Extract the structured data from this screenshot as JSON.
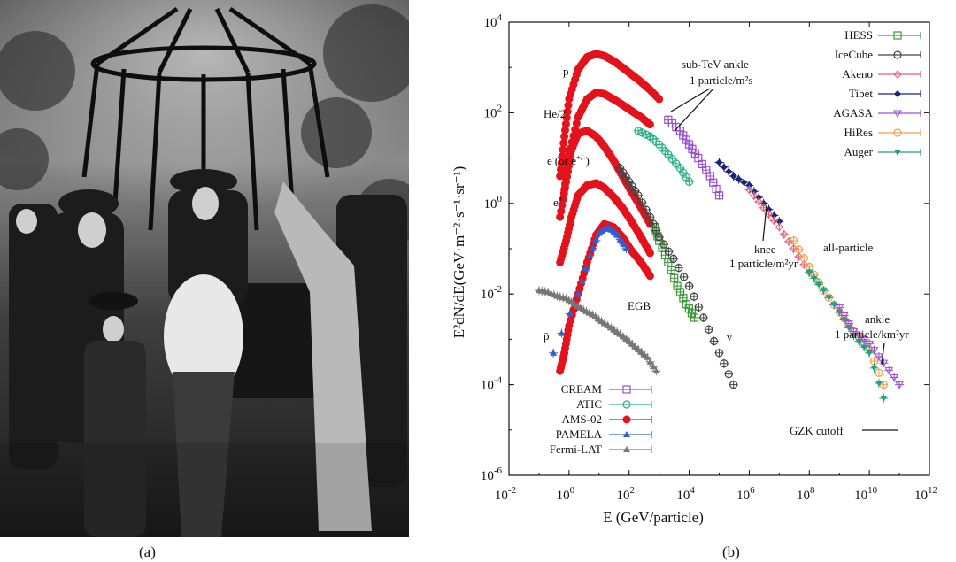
{
  "captions": {
    "a": "(a)",
    "b": "(b)"
  },
  "colors": {
    "p_he_e": "#e3121b",
    "cream": "#9b4fd3",
    "atic": "#2fae8a",
    "pamela": "#2f5fd6",
    "fermi": "#777777",
    "hess": "#3a9a3a",
    "icecube": "#444444",
    "akeno": "#e0607a",
    "tibet": "#1a237e",
    "agasa": "#9b4fd3",
    "hires": "#f0a050",
    "auger": "#20a080",
    "neutrino": "#333333"
  },
  "chart_data": {
    "type": "scatter",
    "xlabel": "E (GeV/particle)",
    "ylabel": "E²dN/dE(GeV·m⁻²·s⁻¹·sr⁻¹)",
    "x_scale": "log",
    "y_scale": "log",
    "xlim": [
      0.01,
      1000000000000.0
    ],
    "ylim": [
      1e-06,
      10000.0
    ],
    "x_ticks": [
      {
        "value": 0.01,
        "base": "10",
        "exp": "-2"
      },
      {
        "value": 1,
        "base": "10",
        "exp": "0"
      },
      {
        "value": 100,
        "base": "10",
        "exp": "2"
      },
      {
        "value": 10000,
        "base": "10",
        "exp": "4"
      },
      {
        "value": 1000000.0,
        "base": "10",
        "exp": "6"
      },
      {
        "value": 100000000.0,
        "base": "10",
        "exp": "8"
      },
      {
        "value": 10000000000.0,
        "base": "10",
        "exp": "10"
      },
      {
        "value": 1000000000000.0,
        "base": "10",
        "exp": "12"
      }
    ],
    "y_ticks": [
      {
        "value": 1e-06,
        "base": "10",
        "exp": "-6"
      },
      {
        "value": 0.0001,
        "base": "10",
        "exp": "-4"
      },
      {
        "value": 0.01,
        "base": "10",
        "exp": "-2"
      },
      {
        "value": 1,
        "base": "10",
        "exp": "0"
      },
      {
        "value": 100,
        "base": "10",
        "exp": "2"
      },
      {
        "value": 10000,
        "base": "10",
        "exp": "4"
      }
    ],
    "legend_left": [
      "CREAM",
      "ATIC",
      "AMS-02",
      "PAMELA",
      "Fermi-LAT"
    ],
    "legend_right": [
      "HESS",
      "IceCube",
      "Akeno",
      "Tibet",
      "AGASA",
      "HiRes",
      "Auger"
    ],
    "legend_left_position": "bottom-left",
    "legend_right_position": "top-right",
    "annotations": {
      "p": "p",
      "he": "He/2",
      "electron_pre": "e",
      "electron_sup": "-",
      "electron_mid": "(or e",
      "electron_sup2": "+/-",
      "electron_post": ")",
      "positron": "e",
      "positron_sup": "+",
      "antiproton": "p̄",
      "egb": "EGB",
      "nu": "ν",
      "subtev": "sub-TeV ankle",
      "subtev_rate": "1 particle/m²s",
      "knee": "knee",
      "knee_rate": "1 particle/m²yr",
      "all_particle": "all-particle",
      "ankle": "ankle",
      "ankle_rate": "1 particle/km²yr",
      "gzk": "GZK cutoff"
    },
    "series": [
      {
        "name": "p",
        "style": "ams",
        "x": [
          0.5,
          0.7,
          1,
          2,
          4,
          8,
          15,
          30,
          60,
          120,
          250,
          500,
          1000
        ],
        "y": [
          4,
          30,
          200,
          900,
          1700,
          2000,
          1800,
          1400,
          1000,
          700,
          480,
          320,
          200
        ]
      },
      {
        "name": "He/2",
        "style": "ams",
        "x": [
          0.7,
          1,
          2,
          4,
          8,
          15,
          30,
          60,
          120,
          250,
          500
        ],
        "y": [
          2,
          12,
          80,
          200,
          280,
          260,
          200,
          150,
          110,
          80,
          55
        ]
      },
      {
        "name": "e-",
        "style": "ams",
        "x": [
          0.5,
          0.8,
          1.2,
          2,
          4,
          8,
          15,
          30,
          60,
          120,
          250,
          500
        ],
        "y": [
          0.5,
          3,
          15,
          35,
          40,
          30,
          18,
          9,
          4,
          1.8,
          0.8,
          0.35
        ]
      },
      {
        "name": "e+",
        "style": "ams",
        "x": [
          0.5,
          0.8,
          1.2,
          2,
          4,
          8,
          15,
          30,
          60,
          120,
          250,
          500
        ],
        "y": [
          0.05,
          0.15,
          0.5,
          1.5,
          2.5,
          2.8,
          2.2,
          1.4,
          0.8,
          0.4,
          0.18,
          0.08
        ]
      },
      {
        "name": "pbar",
        "style": "ams",
        "x": [
          0.5,
          0.7,
          1,
          2,
          4,
          8,
          15,
          30,
          60,
          120,
          250,
          500
        ],
        "y": [
          0.0002,
          0.0005,
          0.002,
          0.01,
          0.05,
          0.2,
          0.35,
          0.3,
          0.18,
          0.09,
          0.05,
          0.025
        ]
      },
      {
        "name": "pbar-pamela",
        "style": "pamela",
        "x": [
          0.3,
          2,
          5,
          10,
          20,
          40,
          80
        ],
        "y": [
          0.0005,
          0.01,
          0.07,
          0.22,
          0.3,
          0.2,
          0.1
        ]
      },
      {
        "name": "EGB",
        "style": "fermi",
        "x": [
          0.1,
          0.2,
          0.4,
          0.8,
          1.5,
          3,
          6,
          12,
          25,
          50,
          100,
          200,
          400,
          800
        ],
        "y": [
          0.012,
          0.011,
          0.009,
          0.008,
          0.006,
          0.0045,
          0.0035,
          0.0025,
          0.0018,
          0.0013,
          0.0009,
          0.0006,
          0.0004,
          0.0002
        ]
      },
      {
        "name": "p-CREAM",
        "style": "cream",
        "x": [
          2000,
          5000,
          10000,
          20000,
          50000,
          100000
        ],
        "y": [
          70,
          40,
          20,
          10,
          4,
          1.5
        ]
      },
      {
        "name": "He-ATIC",
        "style": "atic",
        "x": [
          200,
          500,
          1000,
          2000,
          5000,
          10000
        ],
        "y": [
          40,
          30,
          20,
          12,
          6,
          3
        ]
      },
      {
        "name": "e-HESS",
        "style": "hess",
        "x": [
          700,
          1000,
          2000,
          4000,
          8000,
          15000
        ],
        "y": [
          0.3,
          0.15,
          0.05,
          0.015,
          0.006,
          0.003
        ]
      },
      {
        "name": "nu-IceCube",
        "style": "icecube",
        "x": [
          50,
          100,
          200,
          500,
          1000,
          3000,
          10000,
          30000,
          100000,
          300000
        ],
        "y": [
          6,
          3,
          1.5,
          0.5,
          0.18,
          0.06,
          0.015,
          0.003,
          0.0005,
          0.0001
        ]
      },
      {
        "name": "Tibet",
        "style": "tibet",
        "x": [
          100000,
          300000,
          1000000.0,
          3000000.0,
          10000000.0
        ],
        "y": [
          8,
          4,
          2.5,
          1,
          0.4
        ]
      },
      {
        "name": "Akeno",
        "style": "akeno",
        "x": [
          1000000.0,
          3000000.0,
          10000000.0,
          30000000.0,
          100000000.0
        ],
        "y": [
          2,
          0.8,
          0.3,
          0.1,
          0.03
        ]
      },
      {
        "name": "HiRes",
        "style": "hires",
        "x": [
          30000000.0,
          100000000.0,
          300000000.0,
          1000000000.0,
          3000000000.0,
          10000000000.0,
          30000000000.0
        ],
        "y": [
          0.15,
          0.04,
          0.012,
          0.004,
          0.0015,
          0.0006,
          0.0001
        ]
      },
      {
        "name": "Auger",
        "style": "auger",
        "x": [
          100000000.0,
          300000000.0,
          1000000000.0,
          3000000000.0,
          10000000000.0,
          30000000000.0
        ],
        "y": [
          0.03,
          0.012,
          0.004,
          0.0012,
          0.0005,
          5e-05
        ]
      },
      {
        "name": "AGASA",
        "style": "agasa",
        "x": [
          1000000000.0,
          3000000000.0,
          10000000000.0,
          30000000000.0,
          100000000000.0
        ],
        "y": [
          0.005,
          0.0015,
          0.0008,
          0.0003,
          0.0001
        ]
      }
    ]
  }
}
